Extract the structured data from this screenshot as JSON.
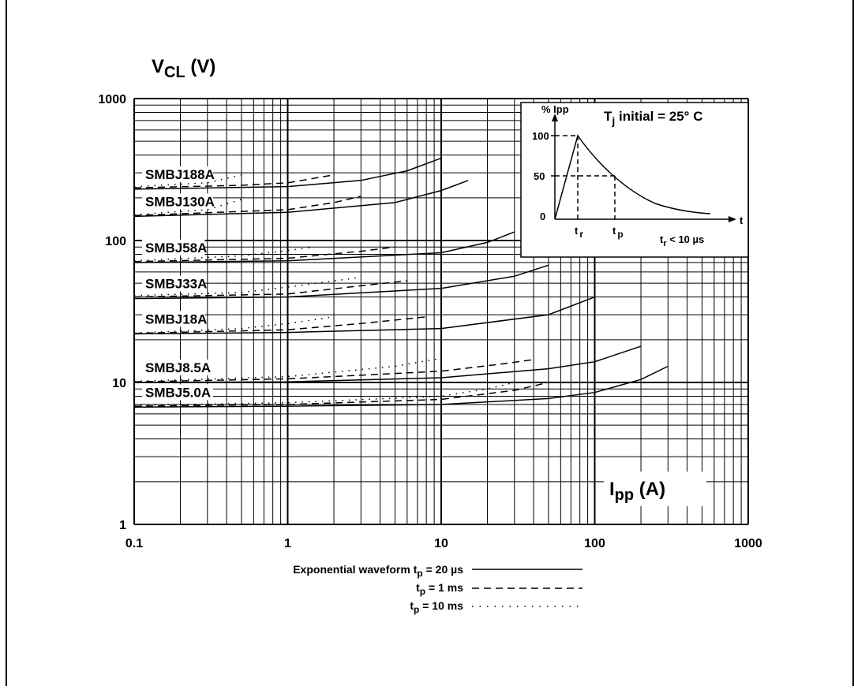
{
  "chart_data": {
    "type": "line",
    "ylabel_main": "V",
    "ylabel_sub": "CL",
    "ylabel_unit": " (V)",
    "xlabel_main": "I",
    "xlabel_sub": "pp",
    "xlabel_unit": " (A)",
    "x_scale": "log",
    "y_scale": "log",
    "xlim": [
      0.1,
      1000
    ],
    "ylim": [
      1,
      1000
    ],
    "x_ticks": [
      "0.1",
      "1",
      "10",
      "100",
      "1000"
    ],
    "y_ticks": [
      "1",
      "10",
      "100",
      "1000"
    ],
    "grid": true,
    "series": [
      {
        "name": "SMBJ188A",
        "solid": [
          [
            0.1,
            230
          ],
          [
            1,
            240
          ],
          [
            3,
            265
          ],
          [
            6,
            310
          ],
          [
            10,
            380
          ]
        ],
        "dashed": [
          [
            0.1,
            235
          ],
          [
            0.5,
            245
          ],
          [
            1,
            255
          ],
          [
            2,
            290
          ]
        ],
        "dotted": [
          [
            0.1,
            240
          ],
          [
            0.3,
            255
          ],
          [
            0.5,
            290
          ]
        ]
      },
      {
        "name": "SMBJ130A",
        "solid": [
          [
            0.1,
            148
          ],
          [
            1,
            158
          ],
          [
            5,
            185
          ],
          [
            10,
            225
          ],
          [
            15,
            265
          ]
        ],
        "dashed": [
          [
            0.1,
            150
          ],
          [
            1,
            165
          ],
          [
            2,
            185
          ],
          [
            3,
            205
          ]
        ],
        "dotted": [
          [
            0.1,
            152
          ],
          [
            0.3,
            165
          ],
          [
            0.5,
            195
          ]
        ]
      },
      {
        "name": "SMBJ58A",
        "solid": [
          [
            0.1,
            70
          ],
          [
            1,
            72
          ],
          [
            10,
            82
          ],
          [
            20,
            97
          ],
          [
            30,
            115
          ]
        ],
        "dashed": [
          [
            0.1,
            71
          ],
          [
            1,
            75
          ],
          [
            3,
            84
          ],
          [
            5,
            90
          ]
        ],
        "dotted": [
          [
            0.1,
            72
          ],
          [
            0.5,
            78
          ],
          [
            1,
            85
          ],
          [
            1.5,
            90
          ]
        ]
      },
      {
        "name": "SMBJ33A",
        "solid": [
          [
            0.1,
            39
          ],
          [
            1,
            40
          ],
          [
            10,
            46
          ],
          [
            30,
            56
          ],
          [
            50,
            67
          ]
        ],
        "dashed": [
          [
            0.1,
            40
          ],
          [
            1,
            42
          ],
          [
            3,
            48
          ],
          [
            6,
            52
          ]
        ],
        "dotted": [
          [
            0.1,
            41
          ],
          [
            0.5,
            43
          ],
          [
            1,
            47
          ],
          [
            3,
            55
          ]
        ]
      },
      {
        "name": "SMBJ18A",
        "solid": [
          [
            0.1,
            22
          ],
          [
            1,
            22.5
          ],
          [
            10,
            24
          ],
          [
            50,
            30
          ],
          [
            100,
            40
          ]
        ],
        "dashed": [
          [
            0.1,
            22.2
          ],
          [
            1,
            23.5
          ],
          [
            3,
            26
          ],
          [
            8,
            29
          ]
        ],
        "dotted": [
          [
            0.1,
            22.3
          ],
          [
            0.5,
            24
          ],
          [
            1,
            26
          ],
          [
            2,
            29
          ]
        ]
      },
      {
        "name": "SMBJ8.5A",
        "solid": [
          [
            0.1,
            10
          ],
          [
            1,
            10.1
          ],
          [
            10,
            10.8
          ],
          [
            50,
            12.5
          ],
          [
            100,
            14
          ],
          [
            200,
            18
          ]
        ],
        "dashed": [
          [
            0.1,
            10.1
          ],
          [
            1,
            10.6
          ],
          [
            10,
            12
          ],
          [
            25,
            13.5
          ],
          [
            40,
            14.5
          ]
        ],
        "dotted": [
          [
            0.1,
            10.2
          ],
          [
            1,
            11
          ],
          [
            5,
            13
          ],
          [
            10,
            14.8
          ]
        ]
      },
      {
        "name": "SMBJ5.0A",
        "solid": [
          [
            0.1,
            6.7
          ],
          [
            1,
            6.8
          ],
          [
            10,
            7
          ],
          [
            50,
            7.7
          ],
          [
            100,
            8.5
          ],
          [
            200,
            10.5
          ],
          [
            300,
            13
          ]
        ],
        "dashed": [
          [
            0.1,
            6.8
          ],
          [
            1,
            7
          ],
          [
            10,
            7.6
          ],
          [
            30,
            8.8
          ],
          [
            50,
            10
          ]
        ],
        "dotted": [
          [
            0.1,
            6.9
          ],
          [
            1,
            7.2
          ],
          [
            10,
            8
          ],
          [
            20,
            9
          ],
          [
            30,
            10
          ]
        ]
      }
    ],
    "legend": {
      "line1_prefix": "Exponential waveform t",
      "line1_sub": "p",
      "line1_suffix": " = 20 µs",
      "line2_prefix": "t",
      "line2_sub": "p",
      "line2_suffix": " = 1 ms",
      "line3_prefix": "t",
      "line3_sub": "p",
      "line3_suffix": " = 10 ms"
    },
    "inset": {
      "title_prefix": "T",
      "title_sub": "j",
      "title_suffix": " initial = 25° C",
      "ylabel": "% Ipp",
      "y_ticks": [
        "100",
        "50",
        "0"
      ],
      "x_axis_label": "t",
      "tr_label": "t",
      "tr_sub": "r",
      "tp_label": "t",
      "tp_sub": "p",
      "note_prefix": "t",
      "note_sub": "r",
      "note_suffix": " < 10 µs"
    }
  }
}
